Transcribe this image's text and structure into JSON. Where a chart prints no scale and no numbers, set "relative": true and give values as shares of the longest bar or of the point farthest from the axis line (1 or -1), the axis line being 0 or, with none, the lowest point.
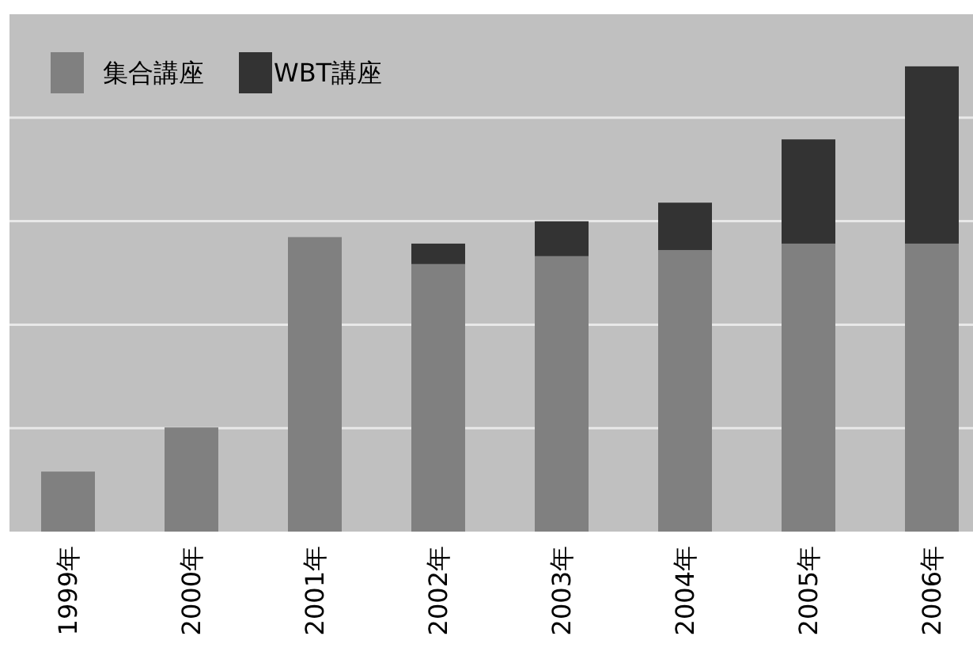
{
  "chart_data": {
    "type": "bar",
    "stacked": true,
    "relative": true,
    "grid": "y",
    "legend": "top left",
    "categories": [
      "1999年",
      "2000年",
      "2001年",
      "2002年",
      "2003年",
      "2004年",
      "2005年",
      "2006年"
    ],
    "series": [
      {
        "name": "集合講座",
        "color": "#808080",
        "values": [
          0.129,
          0.224,
          0.633,
          0.575,
          0.592,
          0.605,
          0.619,
          0.619
        ]
      },
      {
        "name": "WBT講座",
        "color": "#333333",
        "values": [
          0,
          0,
          0,
          0.044,
          0.075,
          0.102,
          0.224,
          0.381
        ]
      }
    ]
  }
}
